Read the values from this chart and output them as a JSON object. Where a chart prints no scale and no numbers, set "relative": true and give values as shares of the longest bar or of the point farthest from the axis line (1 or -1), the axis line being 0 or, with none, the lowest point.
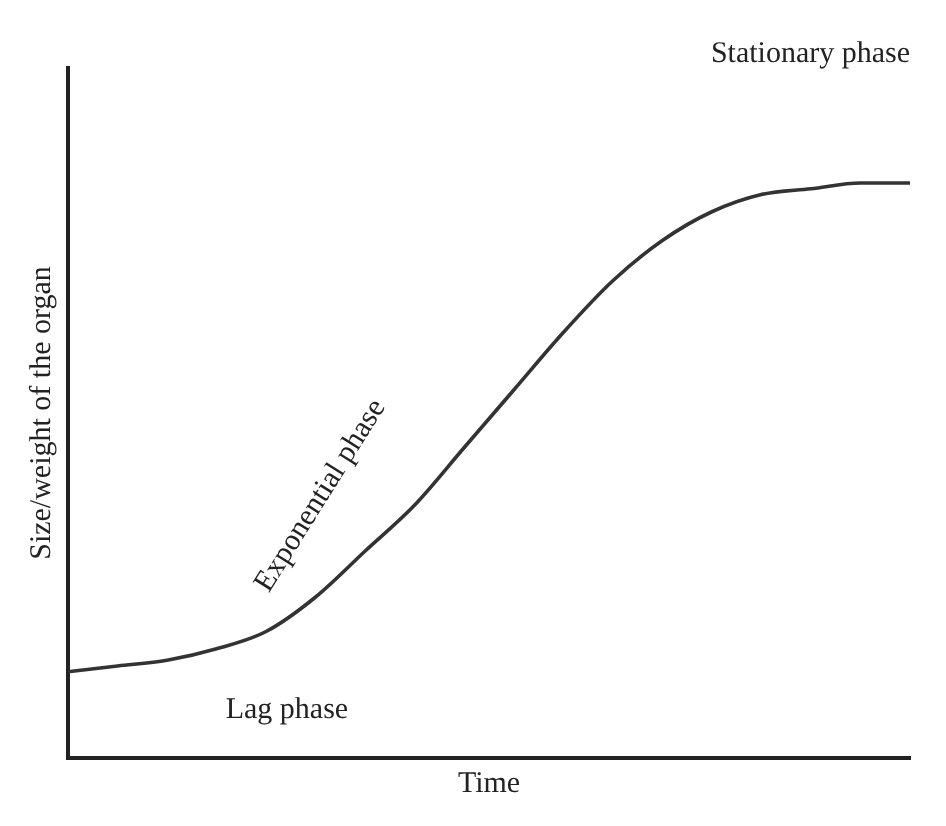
{
  "chart_data": {
    "type": "line",
    "relative": true,
    "xlabel": "Time",
    "ylabel": "Size/weight of the organ",
    "categories": [
      null,
      null,
      null,
      null,
      null,
      null,
      null,
      null,
      null,
      null,
      null,
      null,
      null,
      null,
      null,
      null,
      null,
      null
    ],
    "values": [
      0.15,
      0.16,
      0.17,
      0.19,
      0.22,
      0.28,
      0.36,
      0.44,
      0.54,
      0.64,
      0.74,
      0.83,
      0.9,
      0.95,
      0.98,
      0.99,
      1.0,
      1.0
    ],
    "color": "#333333",
    "marker": "none",
    "line_style": "solid",
    "grid": false,
    "legend": false,
    "annotations": [
      "Stationary phase",
      "Exponential phase",
      "Lag phase"
    ]
  }
}
